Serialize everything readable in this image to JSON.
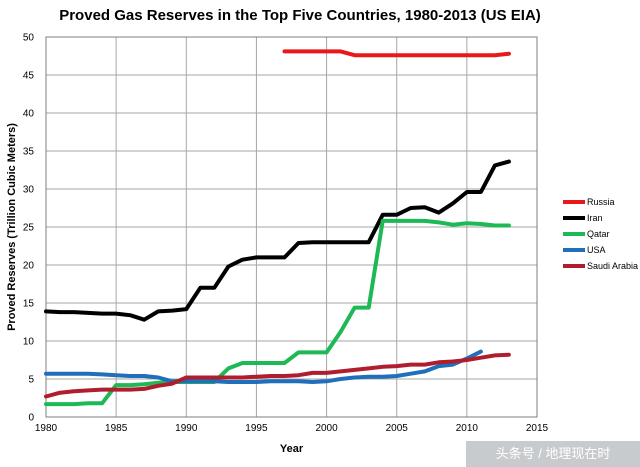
{
  "chart_data": {
    "type": "line",
    "title": "Proved Gas Reserves in the Top Five Countries, 1980-2013 (US EIA)",
    "xlabel": "Year",
    "ylabel": "Proved Reserves (Trillion Cubic Meters)",
    "xlim": [
      1980,
      2015
    ],
    "ylim": [
      0,
      50
    ],
    "xticks": [
      1980,
      1985,
      1990,
      1995,
      2000,
      2005,
      2010,
      2015
    ],
    "yticks": [
      0,
      5,
      10,
      15,
      20,
      25,
      30,
      35,
      40,
      45,
      50
    ],
    "grid": true,
    "legend_position": "right",
    "series": [
      {
        "name": "Russia",
        "color": "#e8191b",
        "points": [
          [
            1997,
            48.1
          ],
          [
            1998,
            48.1
          ],
          [
            1999,
            48.1
          ],
          [
            2000,
            48.1
          ],
          [
            2001,
            48.1
          ],
          [
            2002,
            47.6
          ],
          [
            2003,
            47.6
          ],
          [
            2004,
            47.6
          ],
          [
            2005,
            47.6
          ],
          [
            2006,
            47.6
          ],
          [
            2007,
            47.6
          ],
          [
            2008,
            47.6
          ],
          [
            2009,
            47.6
          ],
          [
            2010,
            47.6
          ],
          [
            2011,
            47.6
          ],
          [
            2012,
            47.6
          ],
          [
            2013,
            47.8
          ]
        ]
      },
      {
        "name": "Iran",
        "color": "#000000",
        "points": [
          [
            1980,
            13.9
          ],
          [
            1981,
            13.8
          ],
          [
            1982,
            13.8
          ],
          [
            1983,
            13.7
          ],
          [
            1984,
            13.6
          ],
          [
            1985,
            13.6
          ],
          [
            1986,
            13.4
          ],
          [
            1987,
            12.8
          ],
          [
            1988,
            13.9
          ],
          [
            1989,
            14.0
          ],
          [
            1990,
            14.2
          ],
          [
            1991,
            17.0
          ],
          [
            1992,
            17.0
          ],
          [
            1993,
            19.8
          ],
          [
            1994,
            20.7
          ],
          [
            1995,
            21.0
          ],
          [
            1996,
            21.0
          ],
          [
            1997,
            21.0
          ],
          [
            1998,
            22.9
          ],
          [
            1999,
            23.0
          ],
          [
            2000,
            23.0
          ],
          [
            2001,
            23.0
          ],
          [
            2002,
            23.0
          ],
          [
            2003,
            23.0
          ],
          [
            2004,
            26.6
          ],
          [
            2005,
            26.6
          ],
          [
            2006,
            27.5
          ],
          [
            2007,
            27.6
          ],
          [
            2008,
            26.9
          ],
          [
            2009,
            28.1
          ],
          [
            2010,
            29.6
          ],
          [
            2011,
            29.6
          ],
          [
            2012,
            33.1
          ],
          [
            2013,
            33.6
          ]
        ]
      },
      {
        "name": "Qatar",
        "color": "#1db954",
        "points": [
          [
            1980,
            1.7
          ],
          [
            1981,
            1.7
          ],
          [
            1982,
            1.7
          ],
          [
            1983,
            1.8
          ],
          [
            1984,
            1.8
          ],
          [
            1985,
            4.2
          ],
          [
            1986,
            4.2
          ],
          [
            1987,
            4.3
          ],
          [
            1988,
            4.5
          ],
          [
            1989,
            4.6
          ],
          [
            1990,
            4.6
          ],
          [
            1991,
            4.6
          ],
          [
            1992,
            4.6
          ],
          [
            1993,
            6.4
          ],
          [
            1994,
            7.1
          ],
          [
            1995,
            7.1
          ],
          [
            1996,
            7.1
          ],
          [
            1997,
            7.1
          ],
          [
            1998,
            8.5
          ],
          [
            1999,
            8.5
          ],
          [
            2000,
            8.5
          ],
          [
            2001,
            11.2
          ],
          [
            2002,
            14.4
          ],
          [
            2003,
            14.4
          ],
          [
            2004,
            25.8
          ],
          [
            2005,
            25.8
          ],
          [
            2006,
            25.8
          ],
          [
            2007,
            25.8
          ],
          [
            2008,
            25.6
          ],
          [
            2009,
            25.3
          ],
          [
            2010,
            25.5
          ],
          [
            2011,
            25.4
          ],
          [
            2012,
            25.2
          ],
          [
            2013,
            25.2
          ]
        ]
      },
      {
        "name": "USA",
        "color": "#1f6fba",
        "points": [
          [
            1980,
            5.7
          ],
          [
            1981,
            5.7
          ],
          [
            1982,
            5.7
          ],
          [
            1983,
            5.7
          ],
          [
            1984,
            5.6
          ],
          [
            1985,
            5.5
          ],
          [
            1986,
            5.4
          ],
          [
            1987,
            5.4
          ],
          [
            1988,
            5.2
          ],
          [
            1989,
            4.7
          ],
          [
            1990,
            4.7
          ],
          [
            1991,
            4.7
          ],
          [
            1992,
            4.7
          ],
          [
            1993,
            4.6
          ],
          [
            1994,
            4.6
          ],
          [
            1995,
            4.6
          ],
          [
            1996,
            4.7
          ],
          [
            1997,
            4.7
          ],
          [
            1998,
            4.7
          ],
          [
            1999,
            4.6
          ],
          [
            2000,
            4.7
          ],
          [
            2001,
            5.0
          ],
          [
            2002,
            5.2
          ],
          [
            2003,
            5.3
          ],
          [
            2004,
            5.3
          ],
          [
            2005,
            5.4
          ],
          [
            2006,
            5.7
          ],
          [
            2007,
            6.0
          ],
          [
            2008,
            6.7
          ],
          [
            2009,
            6.9
          ],
          [
            2010,
            7.7
          ],
          [
            2011,
            8.6
          ]
        ]
      },
      {
        "name": "Saudi Arabia",
        "color": "#b01e2e",
        "points": [
          [
            1980,
            2.7
          ],
          [
            1981,
            3.2
          ],
          [
            1982,
            3.4
          ],
          [
            1983,
            3.5
          ],
          [
            1984,
            3.6
          ],
          [
            1985,
            3.6
          ],
          [
            1986,
            3.6
          ],
          [
            1987,
            3.7
          ],
          [
            1988,
            4.1
          ],
          [
            1989,
            4.4
          ],
          [
            1990,
            5.2
          ],
          [
            1991,
            5.2
          ],
          [
            1992,
            5.2
          ],
          [
            1993,
            5.2
          ],
          [
            1994,
            5.2
          ],
          [
            1995,
            5.3
          ],
          [
            1996,
            5.4
          ],
          [
            1997,
            5.4
          ],
          [
            1998,
            5.5
          ],
          [
            1999,
            5.8
          ],
          [
            2000,
            5.8
          ],
          [
            2001,
            6.0
          ],
          [
            2002,
            6.2
          ],
          [
            2003,
            6.4
          ],
          [
            2004,
            6.6
          ],
          [
            2005,
            6.7
          ],
          [
            2006,
            6.9
          ],
          [
            2007,
            6.9
          ],
          [
            2008,
            7.2
          ],
          [
            2009,
            7.3
          ],
          [
            2010,
            7.5
          ],
          [
            2011,
            7.8
          ],
          [
            2012,
            8.1
          ],
          [
            2013,
            8.2
          ]
        ]
      }
    ]
  },
  "watermark": {
    "text": "头条号 / 地理现在时"
  }
}
